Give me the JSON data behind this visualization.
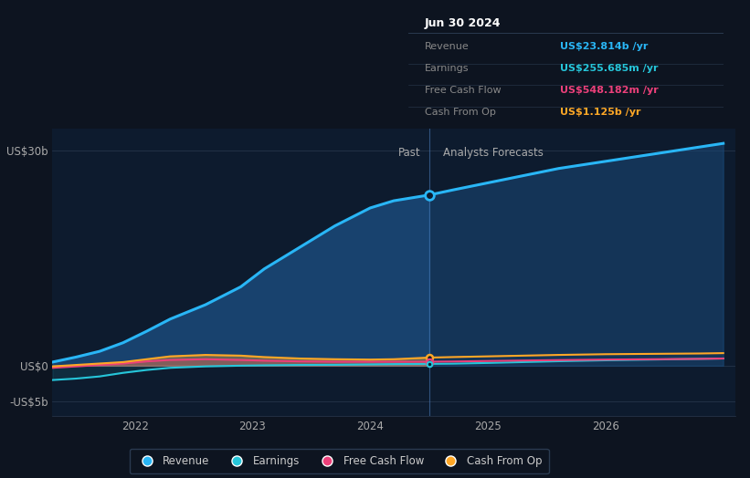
{
  "bg_color": "#0d1420",
  "plot_bg_color": "#0d1b2e",
  "ylim": [
    -7,
    33
  ],
  "xlim_start": 2021.3,
  "xlim_end": 2027.1,
  "xtick_positions": [
    2022,
    2023,
    2024,
    2025,
    2026
  ],
  "past_line_x": 2024.5,
  "past_label": "Past",
  "forecast_label": "Analysts Forecasts",
  "colors": {
    "revenue": "#29b6f6",
    "earnings": "#26c6da",
    "free_cash_flow": "#ec407a",
    "cash_from_op": "#ffa726"
  },
  "legend_items": [
    "Revenue",
    "Earnings",
    "Free Cash Flow",
    "Cash From Op"
  ],
  "tooltip": {
    "date": "Jun 30 2024",
    "rows": [
      {
        "label": "Revenue",
        "value": "US$23.814b /yr",
        "color": "#29b6f6"
      },
      {
        "label": "Earnings",
        "value": "US$255.685m /yr",
        "color": "#26c6da"
      },
      {
        "label": "Free Cash Flow",
        "value": "US$548.182m /yr",
        "color": "#ec407a"
      },
      {
        "label": "Cash From Op",
        "value": "US$1.125b /yr",
        "color": "#ffa726"
      }
    ]
  },
  "revenue_x": [
    2021.3,
    2021.5,
    2021.7,
    2021.9,
    2022.1,
    2022.3,
    2022.6,
    2022.9,
    2023.1,
    2023.4,
    2023.7,
    2024.0,
    2024.2,
    2024.5,
    2024.7,
    2025.0,
    2025.3,
    2025.6,
    2026.0,
    2026.4,
    2026.8,
    2027.0
  ],
  "revenue_y": [
    0.5,
    1.2,
    2.0,
    3.2,
    4.8,
    6.5,
    8.5,
    11.0,
    13.5,
    16.5,
    19.5,
    22.0,
    23.0,
    23.8,
    24.5,
    25.5,
    26.5,
    27.5,
    28.5,
    29.5,
    30.5,
    31.0
  ],
  "earnings_x": [
    2021.3,
    2021.5,
    2021.7,
    2021.9,
    2022.1,
    2022.3,
    2022.6,
    2022.9,
    2023.1,
    2023.4,
    2023.7,
    2024.0,
    2024.2,
    2024.5,
    2024.7,
    2025.0,
    2025.3,
    2025.6,
    2026.0,
    2026.4,
    2026.8,
    2027.0
  ],
  "earnings_y": [
    -2.0,
    -1.8,
    -1.5,
    -1.0,
    -0.6,
    -0.3,
    -0.1,
    0.0,
    0.05,
    0.1,
    0.12,
    0.18,
    0.22,
    0.25,
    0.28,
    0.38,
    0.5,
    0.62,
    0.75,
    0.85,
    0.95,
    1.0
  ],
  "fcf_x": [
    2021.3,
    2021.5,
    2021.7,
    2021.9,
    2022.1,
    2022.3,
    2022.6,
    2022.9,
    2023.1,
    2023.4,
    2023.7,
    2024.0,
    2024.2,
    2024.5,
    2024.7,
    2025.0,
    2025.3,
    2025.6,
    2026.0,
    2026.4,
    2026.8,
    2027.0
  ],
  "fcf_y": [
    -0.3,
    -0.1,
    0.1,
    0.3,
    0.6,
    0.8,
    0.9,
    0.8,
    0.7,
    0.6,
    0.55,
    0.548,
    0.548,
    0.548,
    0.58,
    0.65,
    0.72,
    0.78,
    0.85,
    0.9,
    0.95,
    1.0
  ],
  "cop_x": [
    2021.3,
    2021.5,
    2021.7,
    2021.9,
    2022.1,
    2022.3,
    2022.6,
    2022.9,
    2023.1,
    2023.4,
    2023.7,
    2024.0,
    2024.2,
    2024.5,
    2024.7,
    2025.0,
    2025.3,
    2025.6,
    2026.0,
    2026.4,
    2026.8,
    2027.0
  ],
  "cop_y": [
    -0.1,
    0.1,
    0.3,
    0.5,
    0.9,
    1.3,
    1.5,
    1.4,
    1.2,
    1.0,
    0.9,
    0.85,
    0.9,
    1.125,
    1.2,
    1.3,
    1.4,
    1.5,
    1.6,
    1.65,
    1.7,
    1.75
  ]
}
